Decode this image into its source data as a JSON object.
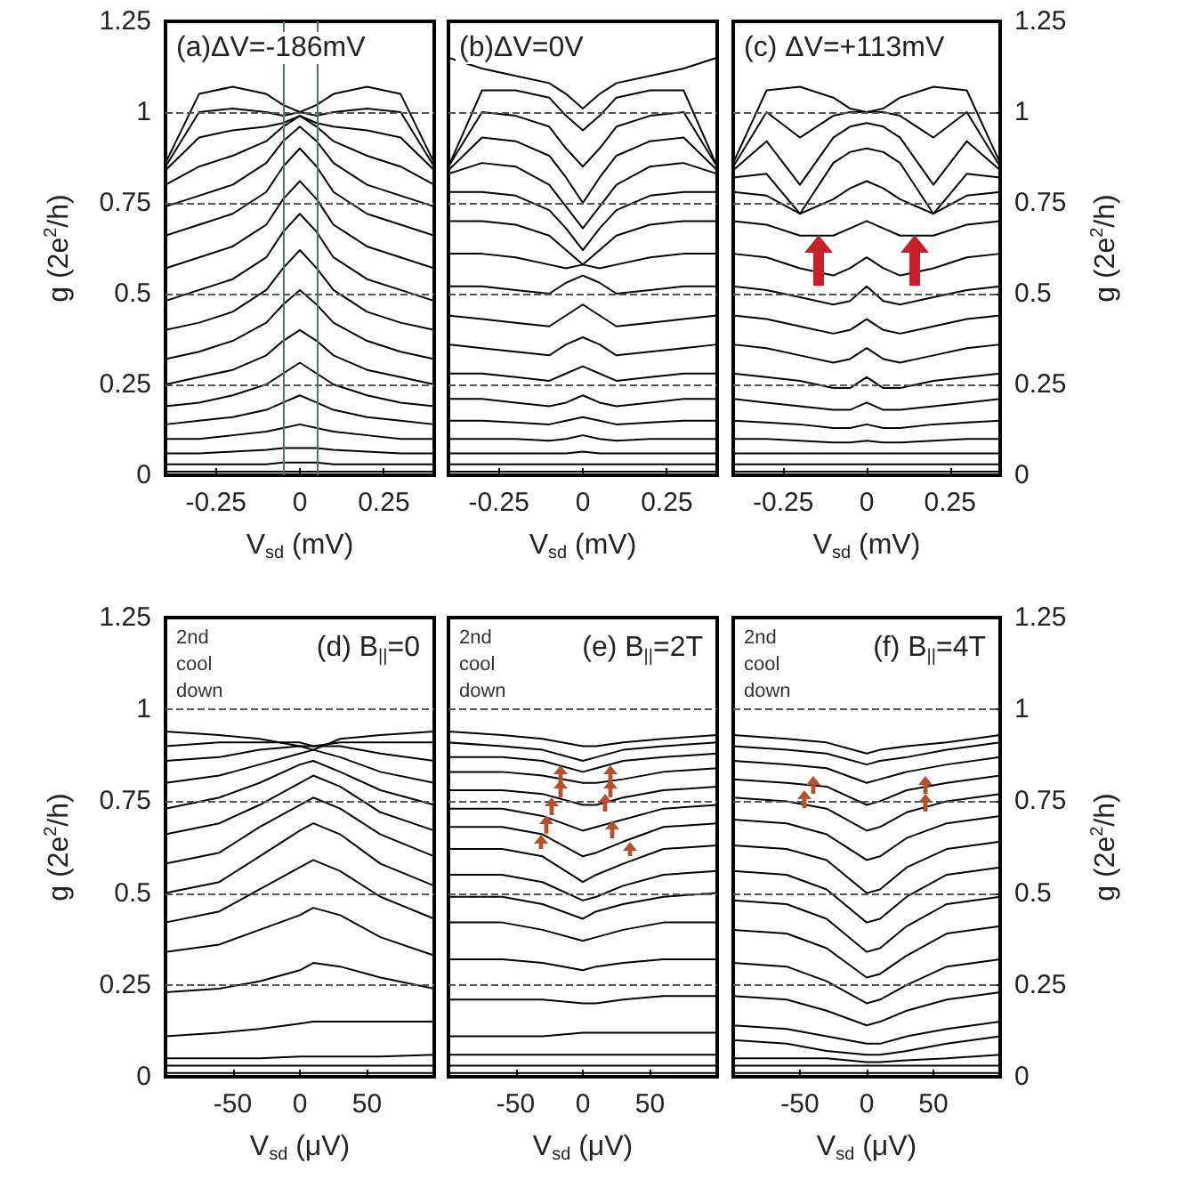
{
  "chart_data": [
    {
      "type": "line",
      "title": "(a)ΔV=-186mV",
      "xlabel": "V$_{sd}$ (mV)",
      "ylabel": "g (2e$^{2}$/h)",
      "xlim": [
        -0.4,
        0.4
      ],
      "xticks": [
        -0.25,
        0,
        0.25
      ],
      "ylim": [
        0,
        1.25
      ],
      "yticks": [
        0,
        0.25,
        0.5,
        0.75,
        1,
        1.25
      ],
      "marker": "none",
      "line_style": "solid",
      "x": [
        -0.4,
        -0.3,
        -0.2,
        -0.1,
        -0.05,
        0,
        0.05,
        0.1,
        0.2,
        0.3,
        0.4
      ],
      "ref_lines": [
        {
          "axis": "y",
          "value": 0.25,
          "color": "#555555",
          "line_style": "dashed"
        },
        {
          "axis": "y",
          "value": 0.5,
          "color": "#555555",
          "line_style": "dashed"
        },
        {
          "axis": "y",
          "value": 0.75,
          "color": "#555555",
          "line_style": "dashed"
        },
        {
          "axis": "y",
          "value": 1,
          "color": "#555555",
          "line_style": "dashed"
        },
        {
          "axis": "x",
          "value": -0.05,
          "color": "#4a7a6a",
          "line_style": "solid"
        },
        {
          "axis": "x",
          "value": 0.05,
          "color": "#4a7a6a",
          "line_style": "solid"
        }
      ],
      "series": [
        {
          "color": "#000000",
          "values": [
            0.01,
            0.01,
            0.01,
            0.01,
            0.01,
            0.01,
            0.01,
            0.01,
            0.01,
            0.01,
            0.01
          ]
        },
        {
          "color": "#000000",
          "values": [
            0.03,
            0.03,
            0.03,
            0.03,
            0.035,
            0.035,
            0.035,
            0.03,
            0.03,
            0.03,
            0.03
          ]
        },
        {
          "color": "#000000",
          "values": [
            0.06,
            0.06,
            0.065,
            0.07,
            0.075,
            0.075,
            0.075,
            0.07,
            0.065,
            0.06,
            0.06
          ]
        },
        {
          "color": "#000000",
          "values": [
            0.1,
            0.1,
            0.11,
            0.12,
            0.13,
            0.14,
            0.13,
            0.12,
            0.11,
            0.1,
            0.1
          ]
        },
        {
          "color": "#000000",
          "values": [
            0.14,
            0.15,
            0.16,
            0.18,
            0.2,
            0.22,
            0.2,
            0.18,
            0.16,
            0.15,
            0.14
          ]
        },
        {
          "color": "#000000",
          "values": [
            0.19,
            0.2,
            0.22,
            0.25,
            0.28,
            0.31,
            0.28,
            0.25,
            0.22,
            0.2,
            0.19
          ]
        },
        {
          "color": "#000000",
          "values": [
            0.25,
            0.27,
            0.29,
            0.33,
            0.37,
            0.4,
            0.37,
            0.33,
            0.29,
            0.27,
            0.25
          ]
        },
        {
          "color": "#000000",
          "values": [
            0.32,
            0.34,
            0.37,
            0.42,
            0.47,
            0.51,
            0.47,
            0.42,
            0.37,
            0.34,
            0.32
          ]
        },
        {
          "color": "#000000",
          "values": [
            0.4,
            0.42,
            0.45,
            0.51,
            0.57,
            0.62,
            0.57,
            0.51,
            0.45,
            0.42,
            0.4
          ]
        },
        {
          "color": "#000000",
          "values": [
            0.48,
            0.51,
            0.54,
            0.6,
            0.67,
            0.72,
            0.67,
            0.6,
            0.54,
            0.51,
            0.48
          ]
        },
        {
          "color": "#000000",
          "values": [
            0.57,
            0.6,
            0.63,
            0.69,
            0.76,
            0.81,
            0.76,
            0.69,
            0.63,
            0.6,
            0.57
          ]
        },
        {
          "color": "#000000",
          "values": [
            0.66,
            0.69,
            0.72,
            0.78,
            0.85,
            0.9,
            0.85,
            0.78,
            0.72,
            0.69,
            0.66
          ]
        },
        {
          "color": "#000000",
          "values": [
            0.74,
            0.77,
            0.8,
            0.86,
            0.92,
            0.96,
            0.92,
            0.86,
            0.8,
            0.77,
            0.74
          ]
        },
        {
          "color": "#000000",
          "values": [
            0.8,
            0.85,
            0.88,
            0.92,
            0.96,
            0.99,
            0.96,
            0.92,
            0.88,
            0.85,
            0.8
          ]
        },
        {
          "color": "#000000",
          "values": [
            0.84,
            0.93,
            0.95,
            0.96,
            0.97,
            0.99,
            0.97,
            0.96,
            0.95,
            0.93,
            0.84
          ]
        },
        {
          "color": "#000000",
          "values": [
            0.85,
            1,
            1.01,
            1,
            0.99,
            1,
            0.99,
            1,
            1.01,
            1,
            0.85
          ]
        },
        {
          "color": "#000000",
          "values": [
            0.86,
            1.05,
            1.07,
            1.05,
            1.02,
            1,
            1.02,
            1.05,
            1.07,
            1.05,
            0.86
          ]
        }
      ]
    },
    {
      "type": "line",
      "title": "(b)ΔV=0V",
      "xlabel": "V$_{sd}$ (mV)",
      "xlim": [
        -0.4,
        0.4
      ],
      "xticks": [
        -0.25,
        0,
        0.25
      ],
      "ylim": [
        0,
        1.25
      ],
      "yticks": [
        0,
        0.25,
        0.5,
        0.75,
        1,
        1.25
      ],
      "tick_labels": "x",
      "marker": "none",
      "line_style": "solid",
      "x": [
        -0.4,
        -0.3,
        -0.2,
        -0.1,
        -0.05,
        0,
        0.05,
        0.1,
        0.2,
        0.3,
        0.4
      ],
      "ref_lines": [
        {
          "axis": "y",
          "value": 0.25,
          "color": "#555555",
          "line_style": "dashed"
        },
        {
          "axis": "y",
          "value": 0.5,
          "color": "#555555",
          "line_style": "dashed"
        },
        {
          "axis": "y",
          "value": 0.75,
          "color": "#555555",
          "line_style": "dashed"
        },
        {
          "axis": "y",
          "value": 1,
          "color": "#555555",
          "line_style": "dashed"
        }
      ],
      "series": [
        {
          "color": "#000000",
          "values": [
            0.01,
            0.01,
            0.01,
            0.01,
            0.01,
            0.01,
            0.01,
            0.01,
            0.01,
            0.01,
            0.01
          ]
        },
        {
          "color": "#000000",
          "values": [
            0.03,
            0.03,
            0.03,
            0.03,
            0.03,
            0.03,
            0.03,
            0.03,
            0.03,
            0.03,
            0.03
          ]
        },
        {
          "color": "#000000",
          "values": [
            0.06,
            0.06,
            0.06,
            0.06,
            0.06,
            0.065,
            0.06,
            0.06,
            0.06,
            0.06,
            0.06
          ]
        },
        {
          "color": "#000000",
          "values": [
            0.1,
            0.1,
            0.1,
            0.095,
            0.1,
            0.11,
            0.1,
            0.095,
            0.1,
            0.1,
            0.1
          ]
        },
        {
          "color": "#000000",
          "values": [
            0.15,
            0.15,
            0.145,
            0.14,
            0.15,
            0.16,
            0.15,
            0.14,
            0.145,
            0.15,
            0.15
          ]
        },
        {
          "color": "#000000",
          "values": [
            0.21,
            0.21,
            0.2,
            0.19,
            0.2,
            0.22,
            0.2,
            0.19,
            0.2,
            0.21,
            0.21
          ]
        },
        {
          "color": "#000000",
          "values": [
            0.28,
            0.28,
            0.27,
            0.26,
            0.28,
            0.3,
            0.28,
            0.26,
            0.27,
            0.28,
            0.28
          ]
        },
        {
          "color": "#000000",
          "values": [
            0.36,
            0.35,
            0.34,
            0.33,
            0.36,
            0.38,
            0.36,
            0.33,
            0.34,
            0.35,
            0.36
          ]
        },
        {
          "color": "#000000",
          "values": [
            0.44,
            0.43,
            0.42,
            0.41,
            0.44,
            0.47,
            0.44,
            0.41,
            0.42,
            0.43,
            0.44
          ]
        },
        {
          "color": "#000000",
          "values": [
            0.52,
            0.52,
            0.51,
            0.5,
            0.53,
            0.55,
            0.53,
            0.5,
            0.51,
            0.52,
            0.52
          ]
        },
        {
          "color": "#000000",
          "values": [
            0.61,
            0.61,
            0.6,
            0.58,
            0.57,
            0.58,
            0.57,
            0.58,
            0.6,
            0.61,
            0.61
          ]
        },
        {
          "color": "#000000",
          "values": [
            0.7,
            0.7,
            0.69,
            0.66,
            0.62,
            0.58,
            0.62,
            0.66,
            0.69,
            0.7,
            0.7
          ]
        },
        {
          "color": "#000000",
          "values": [
            0.78,
            0.78,
            0.77,
            0.73,
            0.68,
            0.62,
            0.68,
            0.73,
            0.77,
            0.78,
            0.78
          ]
        },
        {
          "color": "#000000",
          "values": [
            0.83,
            0.86,
            0.85,
            0.8,
            0.74,
            0.68,
            0.74,
            0.8,
            0.85,
            0.86,
            0.83
          ]
        },
        {
          "color": "#000000",
          "values": [
            0.84,
            0.93,
            0.92,
            0.88,
            0.82,
            0.75,
            0.82,
            0.88,
            0.92,
            0.93,
            0.84
          ]
        },
        {
          "color": "#000000",
          "values": [
            0.85,
            1,
            0.99,
            0.96,
            0.9,
            0.85,
            0.9,
            0.96,
            0.99,
            1,
            0.85
          ]
        },
        {
          "color": "#000000",
          "values": [
            0.85,
            1.06,
            1.06,
            1.04,
            0.99,
            0.95,
            0.99,
            1.04,
            1.06,
            1.06,
            0.85
          ]
        },
        {
          "color": "#000000",
          "values": [
            1.15,
            1.12,
            1.1,
            1.08,
            1.05,
            1.01,
            1.05,
            1.08,
            1.1,
            1.12,
            1.15
          ]
        }
      ]
    },
    {
      "type": "line",
      "title": "(c) ΔV=+113mV",
      "xlabel": "V$_{sd}$ (mV)",
      "y2label": "g (2e$^{2}$/h)",
      "xlim": [
        -0.4,
        0.4
      ],
      "xticks": [
        -0.25,
        0,
        0.25
      ],
      "y2lim": [
        0,
        1.25
      ],
      "y2ticks": [
        0,
        0.25,
        0.5,
        0.75,
        1,
        1.25
      ],
      "marker": "none",
      "line_style": "solid",
      "x": [
        -0.4,
        -0.3,
        -0.2,
        -0.1,
        -0.05,
        0,
        0.05,
        0.1,
        0.2,
        0.3,
        0.4
      ],
      "ref_lines": [
        {
          "axis": "y2",
          "value": 0.25,
          "color": "#555555",
          "line_style": "dashed"
        },
        {
          "axis": "y2",
          "value": 0.5,
          "color": "#555555",
          "line_style": "dashed"
        },
        {
          "axis": "y2",
          "value": 0.75,
          "color": "#555555",
          "line_style": "dashed"
        },
        {
          "axis": "y2",
          "value": 1,
          "color": "#555555",
          "line_style": "dashed"
        }
      ],
      "series": [
        {
          "axis": "y2",
          "color": "#000000",
          "values": [
            0.01,
            0.01,
            0.01,
            0.01,
            0.01,
            0.01,
            0.01,
            0.01,
            0.01,
            0.01,
            0.01
          ]
        },
        {
          "axis": "y2",
          "color": "#000000",
          "values": [
            0.03,
            0.03,
            0.03,
            0.03,
            0.03,
            0.03,
            0.03,
            0.03,
            0.03,
            0.03,
            0.03
          ]
        },
        {
          "axis": "y2",
          "color": "#000000",
          "values": [
            0.06,
            0.06,
            0.06,
            0.06,
            0.06,
            0.06,
            0.06,
            0.06,
            0.06,
            0.06,
            0.06
          ]
        },
        {
          "axis": "y2",
          "color": "#000000",
          "values": [
            0.1,
            0.1,
            0.095,
            0.09,
            0.09,
            0.095,
            0.09,
            0.09,
            0.095,
            0.1,
            0.1
          ]
        },
        {
          "axis": "y2",
          "color": "#000000",
          "values": [
            0.15,
            0.145,
            0.14,
            0.13,
            0.13,
            0.14,
            0.13,
            0.13,
            0.14,
            0.145,
            0.15
          ]
        },
        {
          "axis": "y2",
          "color": "#000000",
          "values": [
            0.21,
            0.2,
            0.19,
            0.18,
            0.18,
            0.2,
            0.18,
            0.18,
            0.19,
            0.2,
            0.21
          ]
        },
        {
          "axis": "y2",
          "color": "#000000",
          "values": [
            0.28,
            0.27,
            0.26,
            0.24,
            0.24,
            0.27,
            0.24,
            0.24,
            0.26,
            0.27,
            0.28
          ]
        },
        {
          "axis": "y2",
          "color": "#000000",
          "values": [
            0.36,
            0.35,
            0.33,
            0.31,
            0.32,
            0.35,
            0.32,
            0.31,
            0.33,
            0.35,
            0.36
          ]
        },
        {
          "axis": "y2",
          "color": "#000000",
          "values": [
            0.44,
            0.43,
            0.41,
            0.39,
            0.4,
            0.43,
            0.4,
            0.39,
            0.41,
            0.43,
            0.44
          ]
        },
        {
          "axis": "y2",
          "color": "#000000",
          "values": [
            0.52,
            0.51,
            0.49,
            0.47,
            0.48,
            0.52,
            0.48,
            0.47,
            0.49,
            0.51,
            0.52
          ]
        },
        {
          "axis": "y2",
          "color": "#000000",
          "values": [
            0.61,
            0.6,
            0.57,
            0.55,
            0.57,
            0.6,
            0.57,
            0.55,
            0.57,
            0.6,
            0.61
          ]
        },
        {
          "axis": "y2",
          "color": "#000000",
          "values": [
            0.7,
            0.69,
            0.66,
            0.66,
            0.68,
            0.7,
            0.68,
            0.66,
            0.66,
            0.69,
            0.7
          ]
        },
        {
          "axis": "y2",
          "color": "#000000",
          "values": [
            0.78,
            0.77,
            0.72,
            0.76,
            0.79,
            0.81,
            0.79,
            0.76,
            0.72,
            0.77,
            0.78
          ]
        },
        {
          "axis": "y2",
          "color": "#000000",
          "values": [
            0.82,
            0.83,
            0.72,
            0.86,
            0.89,
            0.9,
            0.89,
            0.86,
            0.72,
            0.83,
            0.82
          ]
        },
        {
          "axis": "y2",
          "color": "#000000",
          "values": [
            0.84,
            0.92,
            0.8,
            0.93,
            0.96,
            0.97,
            0.96,
            0.93,
            0.8,
            0.92,
            0.84
          ]
        },
        {
          "axis": "y2",
          "color": "#000000",
          "values": [
            0.85,
            1,
            0.93,
            0.99,
            1,
            1,
            1,
            0.99,
            0.93,
            1,
            0.85
          ]
        },
        {
          "axis": "y2",
          "color": "#000000",
          "values": [
            0.86,
            1.06,
            1.07,
            1.04,
            1.01,
            1,
            1.01,
            1.04,
            1.07,
            1.06,
            0.86
          ]
        }
      ]
    },
    {
      "type": "line",
      "title": "(d) B$_{||}$=0",
      "annotations": [
        "2nd cool down"
      ],
      "xlabel": "V$_{sd}$ (μV)",
      "ylabel": "g (2e$^{2}$/h)",
      "xlim": [
        -100,
        100
      ],
      "xticks": [
        -50,
        0,
        50
      ],
      "ylim": [
        0,
        1.25
      ],
      "yticks": [
        0,
        0.25,
        0.5,
        0.75,
        1,
        1.25
      ],
      "marker": "none",
      "line_style": "solid",
      "x": [
        -100,
        -60,
        -30,
        0,
        10,
        30,
        60,
        100
      ],
      "ref_lines": [
        {
          "axis": "y",
          "value": 0.25,
          "color": "#555555",
          "line_style": "dashed"
        },
        {
          "axis": "y",
          "value": 0.5,
          "color": "#555555",
          "line_style": "dashed"
        },
        {
          "axis": "y",
          "value": 0.75,
          "color": "#555555",
          "line_style": "dashed"
        },
        {
          "axis": "y",
          "value": 1,
          "color": "#555555",
          "line_style": "dashed"
        }
      ],
      "series": [
        {
          "color": "#000000",
          "values": [
            0.01,
            0.01,
            0.01,
            0.01,
            0.01,
            0.01,
            0.01,
            0.01
          ]
        },
        {
          "color": "#000000",
          "values": [
            0.03,
            0.03,
            0.03,
            0.03,
            0.03,
            0.03,
            0.03,
            0.03
          ]
        },
        {
          "color": "#000000",
          "values": [
            0.05,
            0.05,
            0.05,
            0.055,
            0.055,
            0.055,
            0.055,
            0.06
          ]
        },
        {
          "color": "#000000",
          "values": [
            0.11,
            0.12,
            0.13,
            0.145,
            0.15,
            0.15,
            0.15,
            0.15
          ]
        },
        {
          "color": "#000000",
          "values": [
            0.23,
            0.24,
            0.26,
            0.29,
            0.31,
            0.3,
            0.27,
            0.24
          ]
        },
        {
          "color": "#000000",
          "values": [
            0.34,
            0.36,
            0.4,
            0.44,
            0.46,
            0.44,
            0.38,
            0.33
          ]
        },
        {
          "color": "#000000",
          "values": [
            0.42,
            0.45,
            0.51,
            0.57,
            0.59,
            0.56,
            0.49,
            0.43
          ]
        },
        {
          "color": "#000000",
          "values": [
            0.5,
            0.53,
            0.6,
            0.67,
            0.69,
            0.66,
            0.58,
            0.52
          ]
        },
        {
          "color": "#000000",
          "values": [
            0.58,
            0.61,
            0.68,
            0.74,
            0.76,
            0.73,
            0.66,
            0.6
          ]
        },
        {
          "color": "#000000",
          "values": [
            0.66,
            0.69,
            0.74,
            0.8,
            0.82,
            0.79,
            0.72,
            0.67
          ]
        },
        {
          "color": "#000000",
          "values": [
            0.73,
            0.76,
            0.8,
            0.85,
            0.86,
            0.83,
            0.78,
            0.74
          ]
        },
        {
          "color": "#000000",
          "values": [
            0.8,
            0.82,
            0.85,
            0.88,
            0.89,
            0.87,
            0.83,
            0.8
          ]
        },
        {
          "color": "#000000",
          "values": [
            0.86,
            0.87,
            0.89,
            0.9,
            0.9,
            0.9,
            0.88,
            0.86
          ]
        },
        {
          "color": "#000000",
          "values": [
            0.9,
            0.91,
            0.91,
            0.91,
            0.9,
            0.91,
            0.91,
            0.91
          ]
        },
        {
          "color": "#000000",
          "values": [
            0.94,
            0.93,
            0.92,
            0.9,
            0.89,
            0.92,
            0.93,
            0.94
          ]
        }
      ]
    },
    {
      "type": "line",
      "title": "(e) B$_{||}$=2T",
      "annotations": [
        "2nd cool down"
      ],
      "xlabel": "V$_{sd}$ (μV)",
      "xlim": [
        -100,
        100
      ],
      "xticks": [
        -50,
        0,
        50
      ],
      "ylim": [
        0,
        1.25
      ],
      "yticks": [
        0,
        0.25,
        0.5,
        0.75,
        1,
        1.25
      ],
      "tick_labels": "x",
      "marker": "none",
      "line_style": "solid",
      "x": [
        -100,
        -60,
        -30,
        0,
        10,
        30,
        60,
        100
      ],
      "ref_lines": [
        {
          "axis": "y",
          "value": 0.25,
          "color": "#555555",
          "line_style": "dashed"
        },
        {
          "axis": "y",
          "value": 0.5,
          "color": "#555555",
          "line_style": "dashed"
        },
        {
          "axis": "y",
          "value": 0.75,
          "color": "#555555",
          "line_style": "dashed"
        },
        {
          "axis": "y",
          "value": 1,
          "color": "#555555",
          "line_style": "dashed"
        }
      ],
      "series": [
        {
          "color": "#000000",
          "values": [
            0.01,
            0.01,
            0.01,
            0.01,
            0.01,
            0.01,
            0.01,
            0.01
          ]
        },
        {
          "color": "#000000",
          "values": [
            0.03,
            0.03,
            0.03,
            0.03,
            0.03,
            0.03,
            0.03,
            0.03
          ]
        },
        {
          "color": "#000000",
          "values": [
            0.06,
            0.06,
            0.06,
            0.06,
            0.06,
            0.06,
            0.06,
            0.06
          ]
        },
        {
          "color": "#000000",
          "values": [
            0.11,
            0.11,
            0.11,
            0.12,
            0.12,
            0.12,
            0.12,
            0.12
          ]
        },
        {
          "color": "#000000",
          "values": [
            0.21,
            0.21,
            0.21,
            0.2,
            0.2,
            0.21,
            0.22,
            0.22
          ]
        },
        {
          "color": "#000000",
          "values": [
            0.32,
            0.32,
            0.31,
            0.29,
            0.3,
            0.31,
            0.32,
            0.32
          ]
        },
        {
          "color": "#000000",
          "values": [
            0.42,
            0.42,
            0.4,
            0.37,
            0.38,
            0.4,
            0.42,
            0.42
          ]
        },
        {
          "color": "#000000",
          "values": [
            0.49,
            0.49,
            0.47,
            0.43,
            0.45,
            0.47,
            0.49,
            0.5
          ]
        },
        {
          "color": "#000000",
          "values": [
            0.55,
            0.55,
            0.53,
            0.48,
            0.49,
            0.52,
            0.55,
            0.56
          ]
        },
        {
          "color": "#000000",
          "values": [
            0.62,
            0.62,
            0.6,
            0.53,
            0.55,
            0.58,
            0.62,
            0.63
          ]
        },
        {
          "color": "#000000",
          "values": [
            0.68,
            0.68,
            0.66,
            0.6,
            0.61,
            0.64,
            0.68,
            0.69
          ]
        },
        {
          "color": "#000000",
          "values": [
            0.73,
            0.73,
            0.71,
            0.67,
            0.68,
            0.7,
            0.73,
            0.74
          ]
        },
        {
          "color": "#000000",
          "values": [
            0.78,
            0.78,
            0.77,
            0.74,
            0.74,
            0.76,
            0.78,
            0.79
          ]
        },
        {
          "color": "#000000",
          "values": [
            0.83,
            0.83,
            0.82,
            0.8,
            0.8,
            0.81,
            0.83,
            0.84
          ]
        },
        {
          "color": "#000000",
          "values": [
            0.87,
            0.87,
            0.86,
            0.83,
            0.84,
            0.86,
            0.87,
            0.88
          ]
        },
        {
          "color": "#000000",
          "values": [
            0.91,
            0.9,
            0.89,
            0.86,
            0.87,
            0.89,
            0.9,
            0.91
          ]
        },
        {
          "color": "#000000",
          "values": [
            0.94,
            0.93,
            0.92,
            0.9,
            0.9,
            0.91,
            0.92,
            0.93
          ]
        }
      ]
    },
    {
      "type": "line",
      "title": "(f) B$_{||}$=4T",
      "annotations": [
        "2nd cool down"
      ],
      "xlabel": "V$_{sd}$ (μV)",
      "y2label": "g (2e$^{2}$/h)",
      "xlim": [
        -100,
        100
      ],
      "xticks": [
        -50,
        0,
        50
      ],
      "y2lim": [
        0,
        1.25
      ],
      "y2ticks": [
        0,
        0.25,
        0.5,
        0.75,
        1,
        1.25
      ],
      "marker": "none",
      "line_style": "solid",
      "x": [
        -100,
        -60,
        -30,
        0,
        10,
        30,
        60,
        100
      ],
      "ref_lines": [
        {
          "axis": "y2",
          "value": 0.25,
          "color": "#555555",
          "line_style": "dashed"
        },
        {
          "axis": "y2",
          "value": 0.5,
          "color": "#555555",
          "line_style": "dashed"
        },
        {
          "axis": "y2",
          "value": 0.75,
          "color": "#555555",
          "line_style": "dashed"
        },
        {
          "axis": "y2",
          "value": 1,
          "color": "#555555",
          "line_style": "dashed"
        }
      ],
      "series": [
        {
          "axis": "y2",
          "color": "#000000",
          "values": [
            0.01,
            0.01,
            0.01,
            0.01,
            0.01,
            0.01,
            0.01,
            0.01
          ]
        },
        {
          "axis": "y2",
          "color": "#000000",
          "values": [
            0.03,
            0.03,
            0.03,
            0.03,
            0.03,
            0.03,
            0.03,
            0.03
          ]
        },
        {
          "axis": "y2",
          "color": "#000000",
          "values": [
            0.05,
            0.05,
            0.05,
            0.04,
            0.04,
            0.045,
            0.05,
            0.06
          ]
        },
        {
          "axis": "y2",
          "color": "#000000",
          "values": [
            0.1,
            0.09,
            0.07,
            0.06,
            0.06,
            0.07,
            0.09,
            0.11
          ]
        },
        {
          "axis": "y2",
          "color": "#000000",
          "values": [
            0.14,
            0.13,
            0.11,
            0.09,
            0.09,
            0.11,
            0.13,
            0.15
          ]
        },
        {
          "axis": "y2",
          "color": "#000000",
          "values": [
            0.22,
            0.21,
            0.18,
            0.14,
            0.15,
            0.18,
            0.21,
            0.23
          ]
        },
        {
          "axis": "y2",
          "color": "#000000",
          "values": [
            0.31,
            0.3,
            0.26,
            0.2,
            0.21,
            0.25,
            0.3,
            0.32
          ]
        },
        {
          "axis": "y2",
          "color": "#000000",
          "values": [
            0.4,
            0.39,
            0.35,
            0.27,
            0.28,
            0.33,
            0.39,
            0.41
          ]
        },
        {
          "axis": "y2",
          "color": "#000000",
          "values": [
            0.48,
            0.47,
            0.43,
            0.34,
            0.35,
            0.41,
            0.47,
            0.49
          ]
        },
        {
          "axis": "y2",
          "color": "#000000",
          "values": [
            0.56,
            0.55,
            0.51,
            0.42,
            0.43,
            0.49,
            0.55,
            0.57
          ]
        },
        {
          "axis": "y2",
          "color": "#000000",
          "values": [
            0.63,
            0.62,
            0.59,
            0.5,
            0.51,
            0.57,
            0.62,
            0.64
          ]
        },
        {
          "axis": "y2",
          "color": "#000000",
          "values": [
            0.7,
            0.69,
            0.66,
            0.59,
            0.6,
            0.65,
            0.69,
            0.71
          ]
        },
        {
          "axis": "y2",
          "color": "#000000",
          "values": [
            0.76,
            0.75,
            0.73,
            0.67,
            0.68,
            0.72,
            0.75,
            0.77
          ]
        },
        {
          "axis": "y2",
          "color": "#000000",
          "values": [
            0.81,
            0.8,
            0.79,
            0.74,
            0.75,
            0.78,
            0.8,
            0.82
          ]
        },
        {
          "axis": "y2",
          "color": "#000000",
          "values": [
            0.86,
            0.85,
            0.84,
            0.8,
            0.81,
            0.83,
            0.85,
            0.87
          ]
        },
        {
          "axis": "y2",
          "color": "#000000",
          "values": [
            0.9,
            0.89,
            0.88,
            0.85,
            0.86,
            0.87,
            0.89,
            0.91
          ]
        },
        {
          "axis": "y2",
          "color": "#000000",
          "values": [
            0.93,
            0.92,
            0.91,
            0.88,
            0.89,
            0.9,
            0.91,
            0.93
          ]
        }
      ]
    }
  ]
}
